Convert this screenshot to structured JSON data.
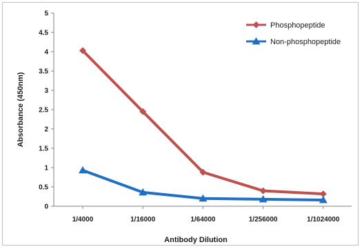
{
  "chart_data": {
    "type": "line",
    "categories": [
      "1/4000",
      "1/16000",
      "1/64000",
      "1/256000",
      "1/1024000"
    ],
    "series": [
      {
        "name": "Phosphopeptide",
        "values": [
          4.03,
          2.45,
          0.88,
          0.4,
          0.32
        ],
        "color": "#c0504d",
        "marker": "diamond"
      },
      {
        "name": "Non-phosphopeptide",
        "values": [
          0.93,
          0.36,
          0.2,
          0.18,
          0.16
        ],
        "color": "#1f6fc5",
        "marker": "triangle"
      }
    ],
    "xlabel": "Antibody Dilution",
    "ylabel": "Absorbance (450nm)",
    "ylim": [
      0,
      5
    ],
    "yticks": [
      "0",
      "0.5",
      "1",
      "1.5",
      "2",
      "2.5",
      "3",
      "3.5",
      "4",
      "4.5",
      "5"
    ],
    "grid": false,
    "legend_position": "top-right"
  }
}
